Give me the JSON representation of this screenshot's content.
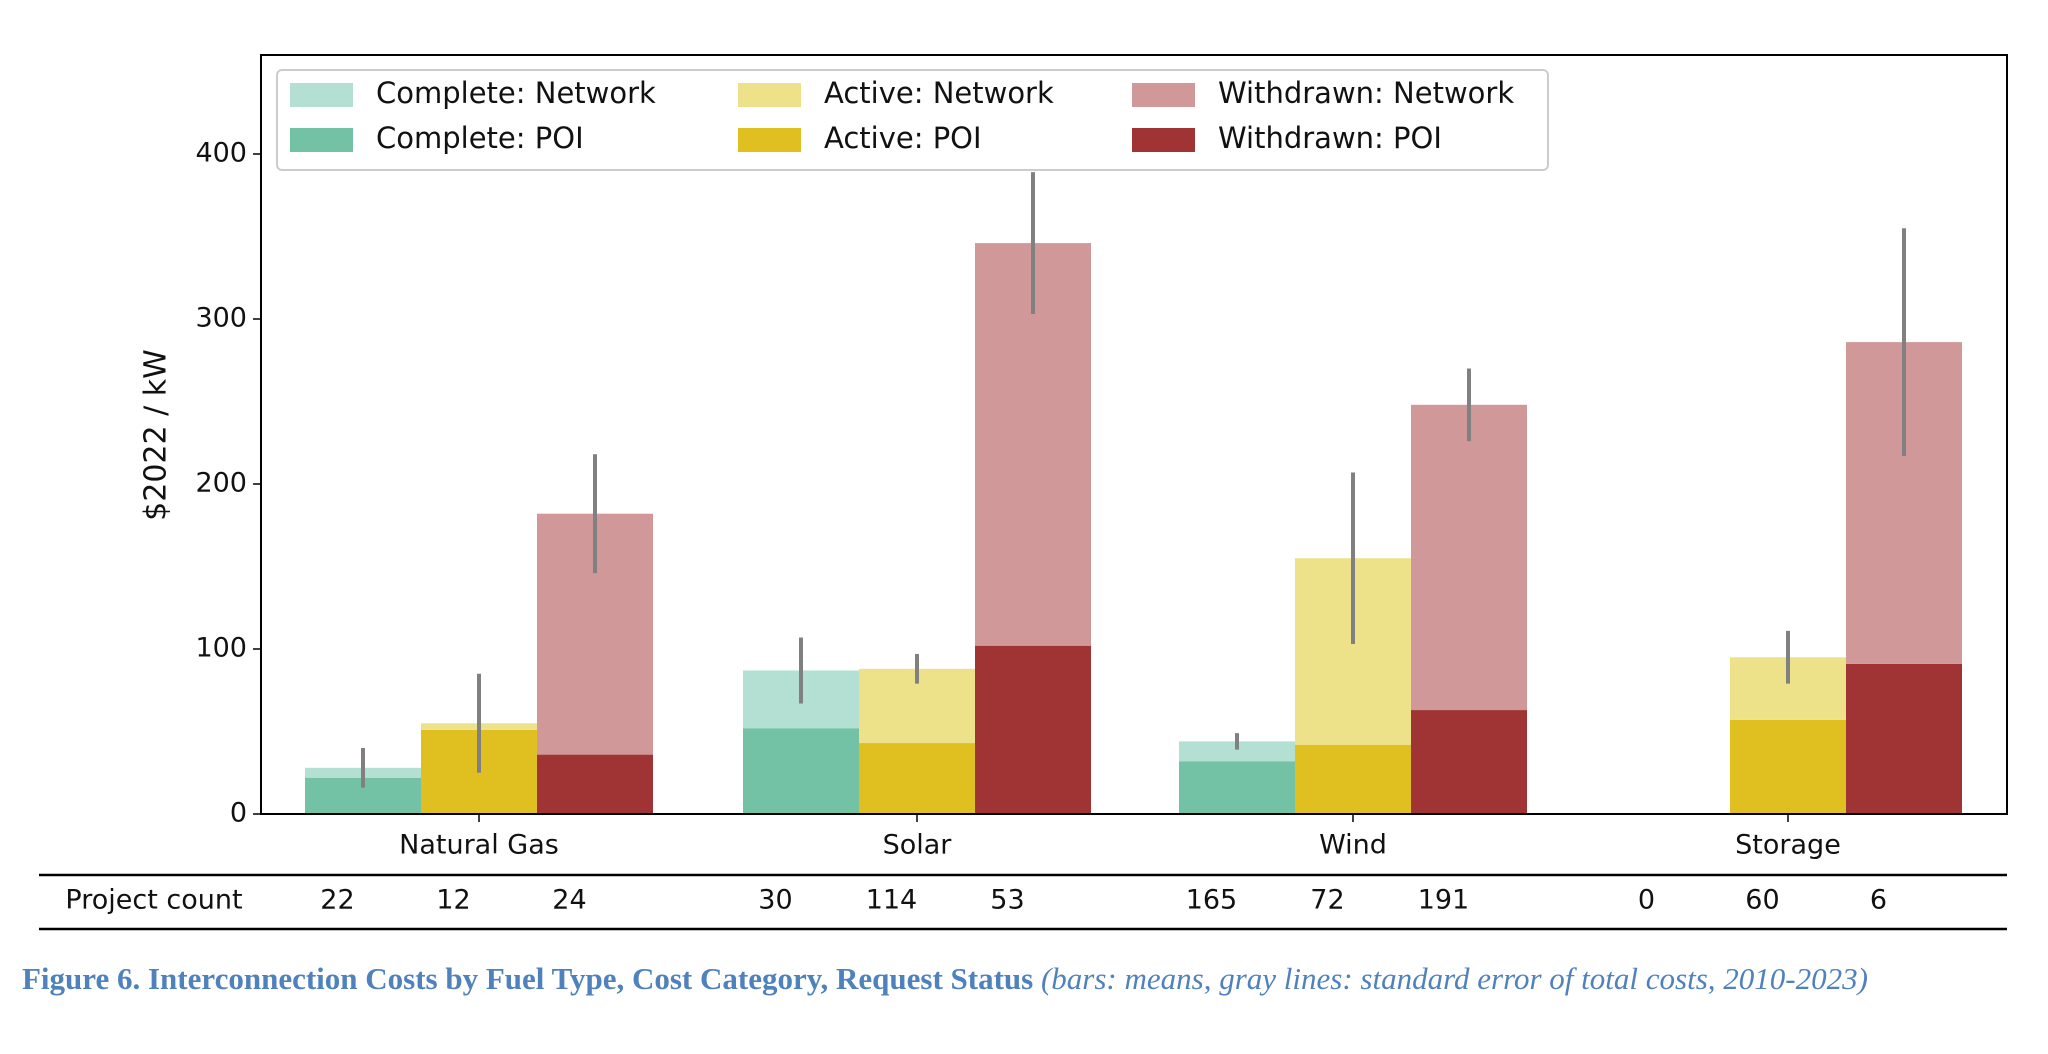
{
  "chart_data": {
    "type": "bar",
    "y_label": "$2022 / kW",
    "categories": [
      "Natural Gas",
      "Solar",
      "Wind",
      "Storage"
    ],
    "ylim": [
      0,
      460
    ],
    "yticks": [
      0,
      100,
      200,
      300,
      400
    ],
    "series": [
      {
        "name": "Complete: Network",
        "color": "#b3e0d2",
        "values": [
          6,
          35,
          12,
          null
        ],
        "errors": [
          12,
          20,
          5,
          null
        ]
      },
      {
        "name": "Complete: POI",
        "color": "#74c2a5",
        "values": [
          22,
          52,
          32,
          null
        ]
      },
      {
        "name": "Active: Network",
        "color": "#ede28a",
        "values": [
          4,
          45,
          113,
          38
        ],
        "errors": [
          30,
          9,
          52,
          16
        ]
      },
      {
        "name": "Active: POI",
        "color": "#e0c020",
        "values": [
          51,
          43,
          42,
          57
        ]
      },
      {
        "name": "Withdrawn: Network",
        "color": "#d09898",
        "values": [
          146,
          244,
          185,
          195
        ],
        "errors": [
          36,
          43,
          22,
          69
        ]
      },
      {
        "name": "Withdrawn: POI",
        "color": "#a03434",
        "values": [
          36,
          102,
          63,
          91
        ]
      }
    ],
    "error_color": "#808080",
    "table": {
      "label": "Project count",
      "values": [
        [
          22,
          12,
          24
        ],
        [
          30,
          114,
          53
        ],
        [
          165,
          72,
          191
        ],
        [
          0,
          60,
          6
        ]
      ]
    },
    "caption": {
      "title": "Figure 6. Interconnection Costs by Fuel Type, Cost Category, Request Status",
      "note": "(bars: means, gray lines: standard error of total costs, 2010-2023)"
    }
  }
}
